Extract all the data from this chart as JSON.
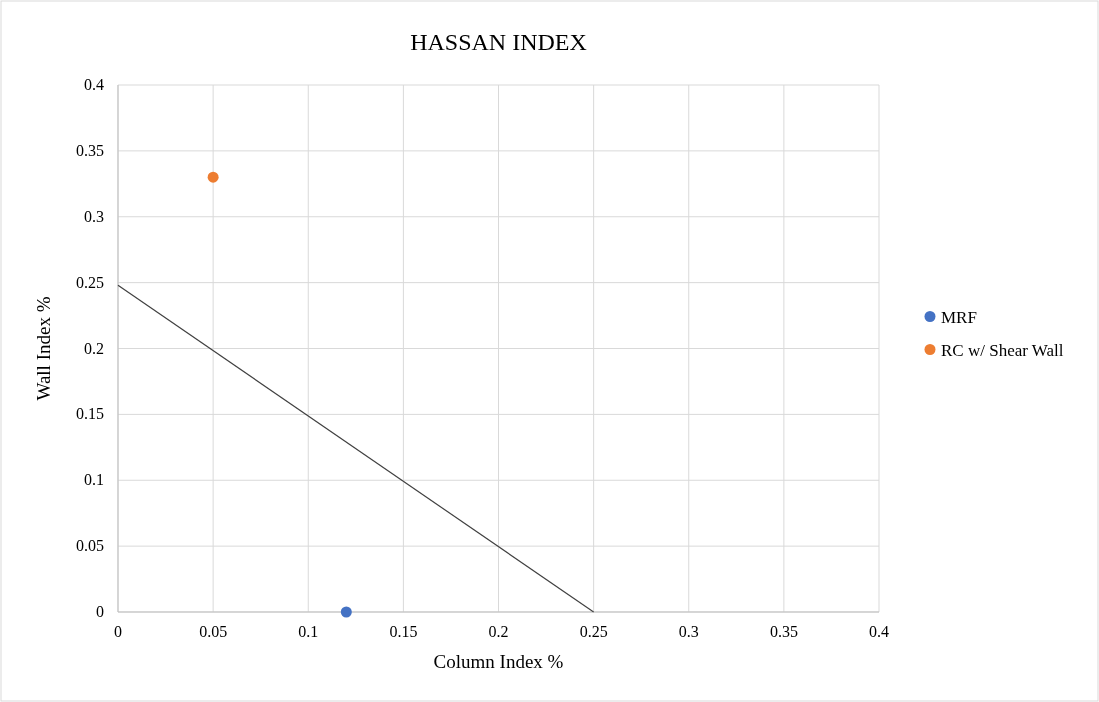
{
  "chart_data": {
    "type": "scatter",
    "title": "HASSAN INDEX",
    "xlabel": "Column Index %",
    "ylabel": "Wall Index %",
    "series": [
      {
        "name": "MRF",
        "color": "#4472c4",
        "x": [
          0.12
        ],
        "values": [
          0
        ]
      },
      {
        "name": "RC w/ Shear Wall",
        "color": "#ed7d31",
        "x": [
          0.05
        ],
        "values": [
          0.33
        ]
      },
      {
        "type": "line",
        "color": "#404040",
        "x": [
          0,
          0.25
        ],
        "values": [
          0.248,
          0
        ],
        "marker": "none"
      }
    ],
    "xlim": [
      0,
      0.4
    ],
    "xticks": [
      0,
      0.05,
      0.1,
      0.15,
      0.2,
      0.25,
      0.3,
      0.35,
      0.4
    ],
    "ylim": [
      0,
      0.4
    ],
    "yticks": [
      0,
      0.05,
      0.1,
      0.15,
      0.2,
      0.25,
      0.3,
      0.35,
      0.4
    ],
    "grid": true,
    "legend": "right",
    "marker": "circle"
  }
}
